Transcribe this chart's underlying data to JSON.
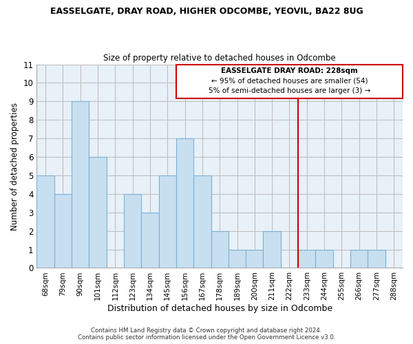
{
  "title": "EASSELGATE, DRAY ROAD, HIGHER ODCOMBE, YEOVIL, BA22 8UG",
  "subtitle": "Size of property relative to detached houses in Odcombe",
  "xlabel": "Distribution of detached houses by size in Odcombe",
  "ylabel": "Number of detached properties",
  "bar_labels": [
    "68sqm",
    "79sqm",
    "90sqm",
    "101sqm",
    "112sqm",
    "123sqm",
    "134sqm",
    "145sqm",
    "156sqm",
    "167sqm",
    "178sqm",
    "189sqm",
    "200sqm",
    "211sqm",
    "222sqm",
    "233sqm",
    "244sqm",
    "255sqm",
    "266sqm",
    "277sqm",
    "288sqm"
  ],
  "bar_values": [
    5,
    4,
    9,
    6,
    0,
    4,
    3,
    5,
    7,
    5,
    2,
    1,
    1,
    2,
    0,
    1,
    1,
    0,
    1,
    1,
    0
  ],
  "bar_color": "#c8dff0",
  "bar_edge_color": "#7ab0d4",
  "plot_bg_color": "#e8f0f8",
  "ylim": [
    0,
    11
  ],
  "yticks": [
    0,
    1,
    2,
    3,
    4,
    5,
    6,
    7,
    8,
    9,
    10,
    11
  ],
  "vline_color": "#cc0000",
  "annotation_title": "EASSELGATE DRAY ROAD: 228sqm",
  "annotation_line1": "← 95% of detached houses are smaller (54)",
  "annotation_line2": "5% of semi-detached houses are larger (3) →",
  "annotation_box_color": "#ffffff",
  "annotation_box_edge_color": "#cc0000",
  "footer_line1": "Contains HM Land Registry data © Crown copyright and database right 2024.",
  "footer_line2": "Contains public sector information licensed under the Open Government Licence v3.0.",
  "background_color": "#ffffff",
  "grid_color": "#bbbbbb"
}
